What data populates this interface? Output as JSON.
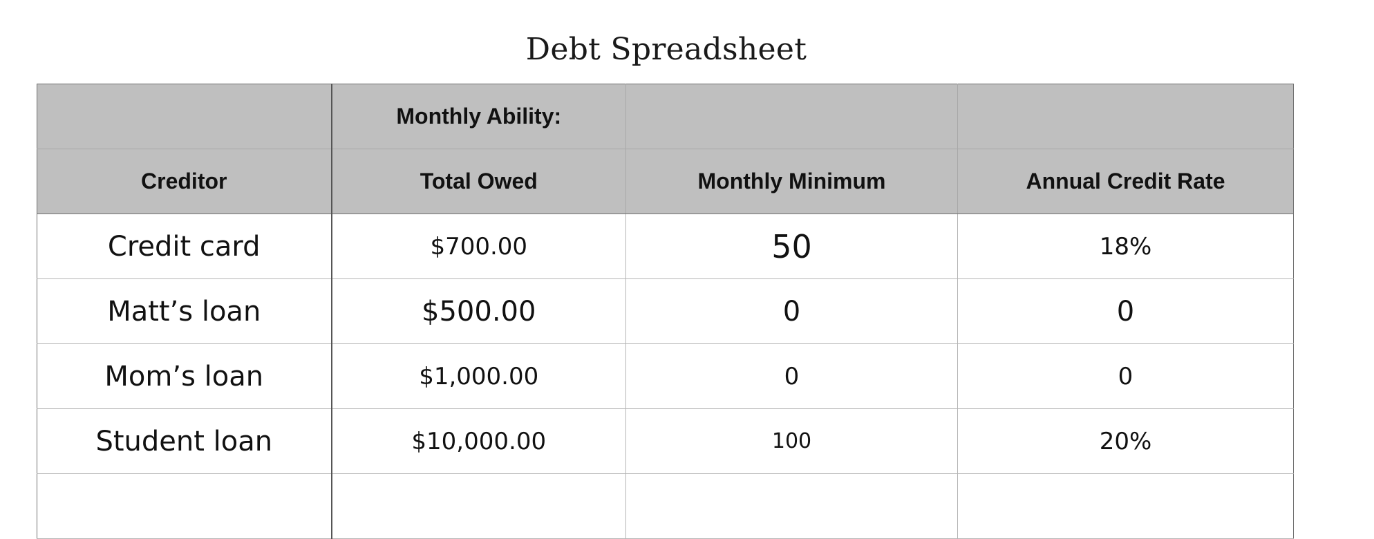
{
  "document": {
    "title": "Debt Spreadsheet"
  },
  "table": {
    "top_header": [
      "",
      "Monthly Ability:",
      "",
      ""
    ],
    "column_headers": [
      "Creditor",
      "Total Owed",
      "Monthly Minimum",
      "Annual Credit Rate"
    ],
    "rows": [
      [
        "Credit card",
        "$700.00",
        "50",
        "18%"
      ],
      [
        "Matt’s loan",
        "$500.00",
        "0",
        "0"
      ],
      [
        "Mom’s loan",
        "$1,000.00",
        "0",
        "0"
      ],
      [
        "Student loan",
        "$10,000.00",
        "100",
        "20%"
      ],
      [
        "",
        "",
        "",
        ""
      ]
    ]
  },
  "colors": {
    "header_background": "#bfbfbf",
    "grid_line": "#b4b4b4",
    "text": "#111111"
  }
}
